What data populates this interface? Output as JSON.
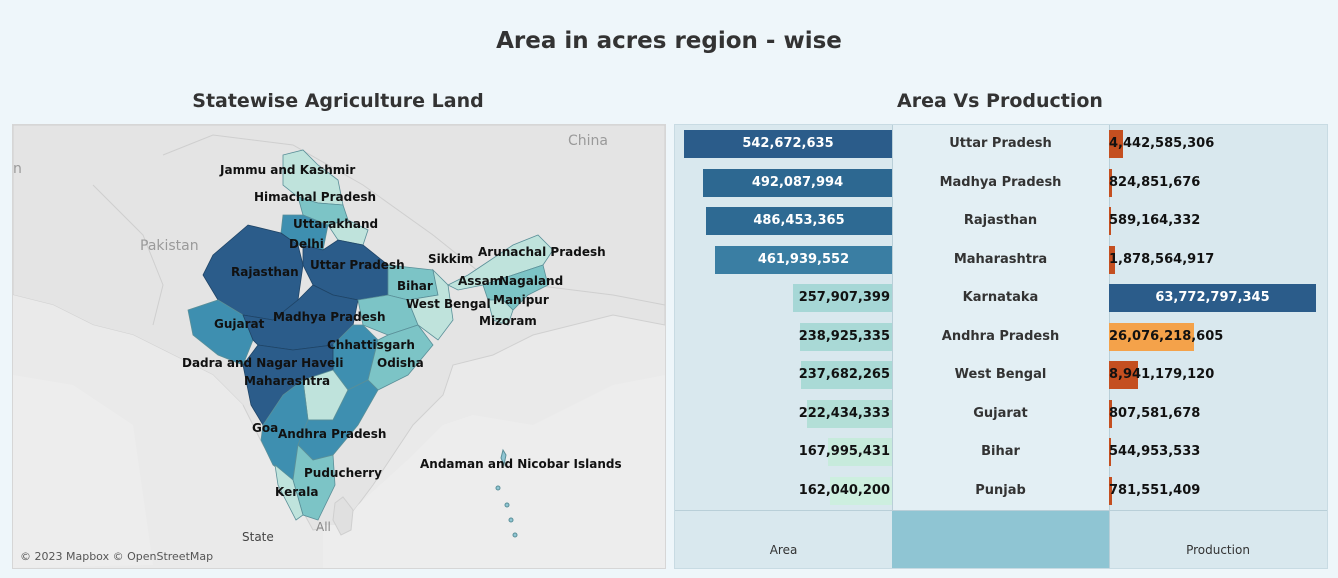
{
  "title": "Area in acres region - wise",
  "map": {
    "title": "Statewise Agriculture Land",
    "attribution": "© 2023 Mapbox © OpenStreetMap",
    "legend_field": "State",
    "legend_value": "All",
    "geo_labels": {
      "china": "China",
      "pakistan": "Pakistan",
      "edge": "n"
    },
    "state_labels": {
      "jk": "Jammu and Kashmir",
      "hp": "Himachal Pradesh",
      "uk": "Uttarakhand",
      "delhi": "Delhi",
      "raj": "Rajasthan",
      "up": "Uttar Pradesh",
      "sikkim": "Sikkim",
      "arunachal": "Arunachal Pradesh",
      "assam": "Assam",
      "nagaland": "Nagaland",
      "bihar": "Bihar",
      "wb": "West Bengal",
      "manipur": "Manipur",
      "guj": "Gujarat",
      "mp": "Madhya Pradesh",
      "mizoram": "Mizoram",
      "chh": "Chhattisgarh",
      "dnh": "Dadra and Nagar Haveli",
      "odisha": "Odisha",
      "mah": "Maharashtra",
      "goa": "Goa",
      "ap": "Andhra Pradesh",
      "andaman": "Andaman and Nicobar Islands",
      "pudu": "Puducherry",
      "kerala": "Kerala"
    },
    "colors": {
      "dark": "#2b5c8a",
      "mid": "#3e8fb0",
      "light": "#7cc4c6",
      "pale": "#bfe3dc"
    }
  },
  "chart": {
    "title": "Area Vs Production",
    "area_axis_label": "Area",
    "production_axis_label": "Production"
  },
  "chart_data": {
    "type": "bar",
    "categories": [
      "Uttar Pradesh",
      "Madhya Pradesh",
      "Rajasthan",
      "Maharashtra",
      "Karnataka",
      "Andhra Pradesh",
      "West Bengal",
      "Gujarat",
      "Bihar",
      "Punjab"
    ],
    "series": [
      {
        "name": "Area",
        "values": [
          542672635,
          492087994,
          486453365,
          461939552,
          257907399,
          238925335,
          237682265,
          222434333,
          167995431,
          162040200
        ],
        "labels": [
          "542,672,635",
          "492,087,994",
          "486,453,365",
          "461,939,552",
          "257,907,399",
          "238,925,335",
          "237,682,265",
          "222,434,333",
          "167,995,431",
          "162,040,200"
        ]
      },
      {
        "name": "Production",
        "values": [
          4442585306,
          824851676,
          589164332,
          1878564917,
          63772797345,
          26076218605,
          8941179120,
          807581678,
          544953533,
          781551409
        ],
        "labels": [
          "4,442,585,306",
          "824,851,676",
          "589,164,332",
          "1,878,564,917",
          "63,772,797,345",
          "26,076,218,605",
          "8,941,179,120",
          "807,581,678",
          "544,953,533",
          "781,551,409"
        ]
      }
    ],
    "area_colors": [
      "#2b5c8a",
      "#2d6891",
      "#2e6a93",
      "#3a7ea3",
      "#a6d7d6",
      "#a9d9d6",
      "#aadad6",
      "#b3dfd7",
      "#c7ebdc",
      "#cdefdf"
    ],
    "production_colors": [
      "#c44f20",
      "#c44f20",
      "#c44f20",
      "#c44f20",
      "#2b5c8a",
      "#f4a24a",
      "#c44f20",
      "#c44f20",
      "#c44f20",
      "#c44f20"
    ],
    "area_max": 542672635,
    "production_max": 63772797345
  }
}
